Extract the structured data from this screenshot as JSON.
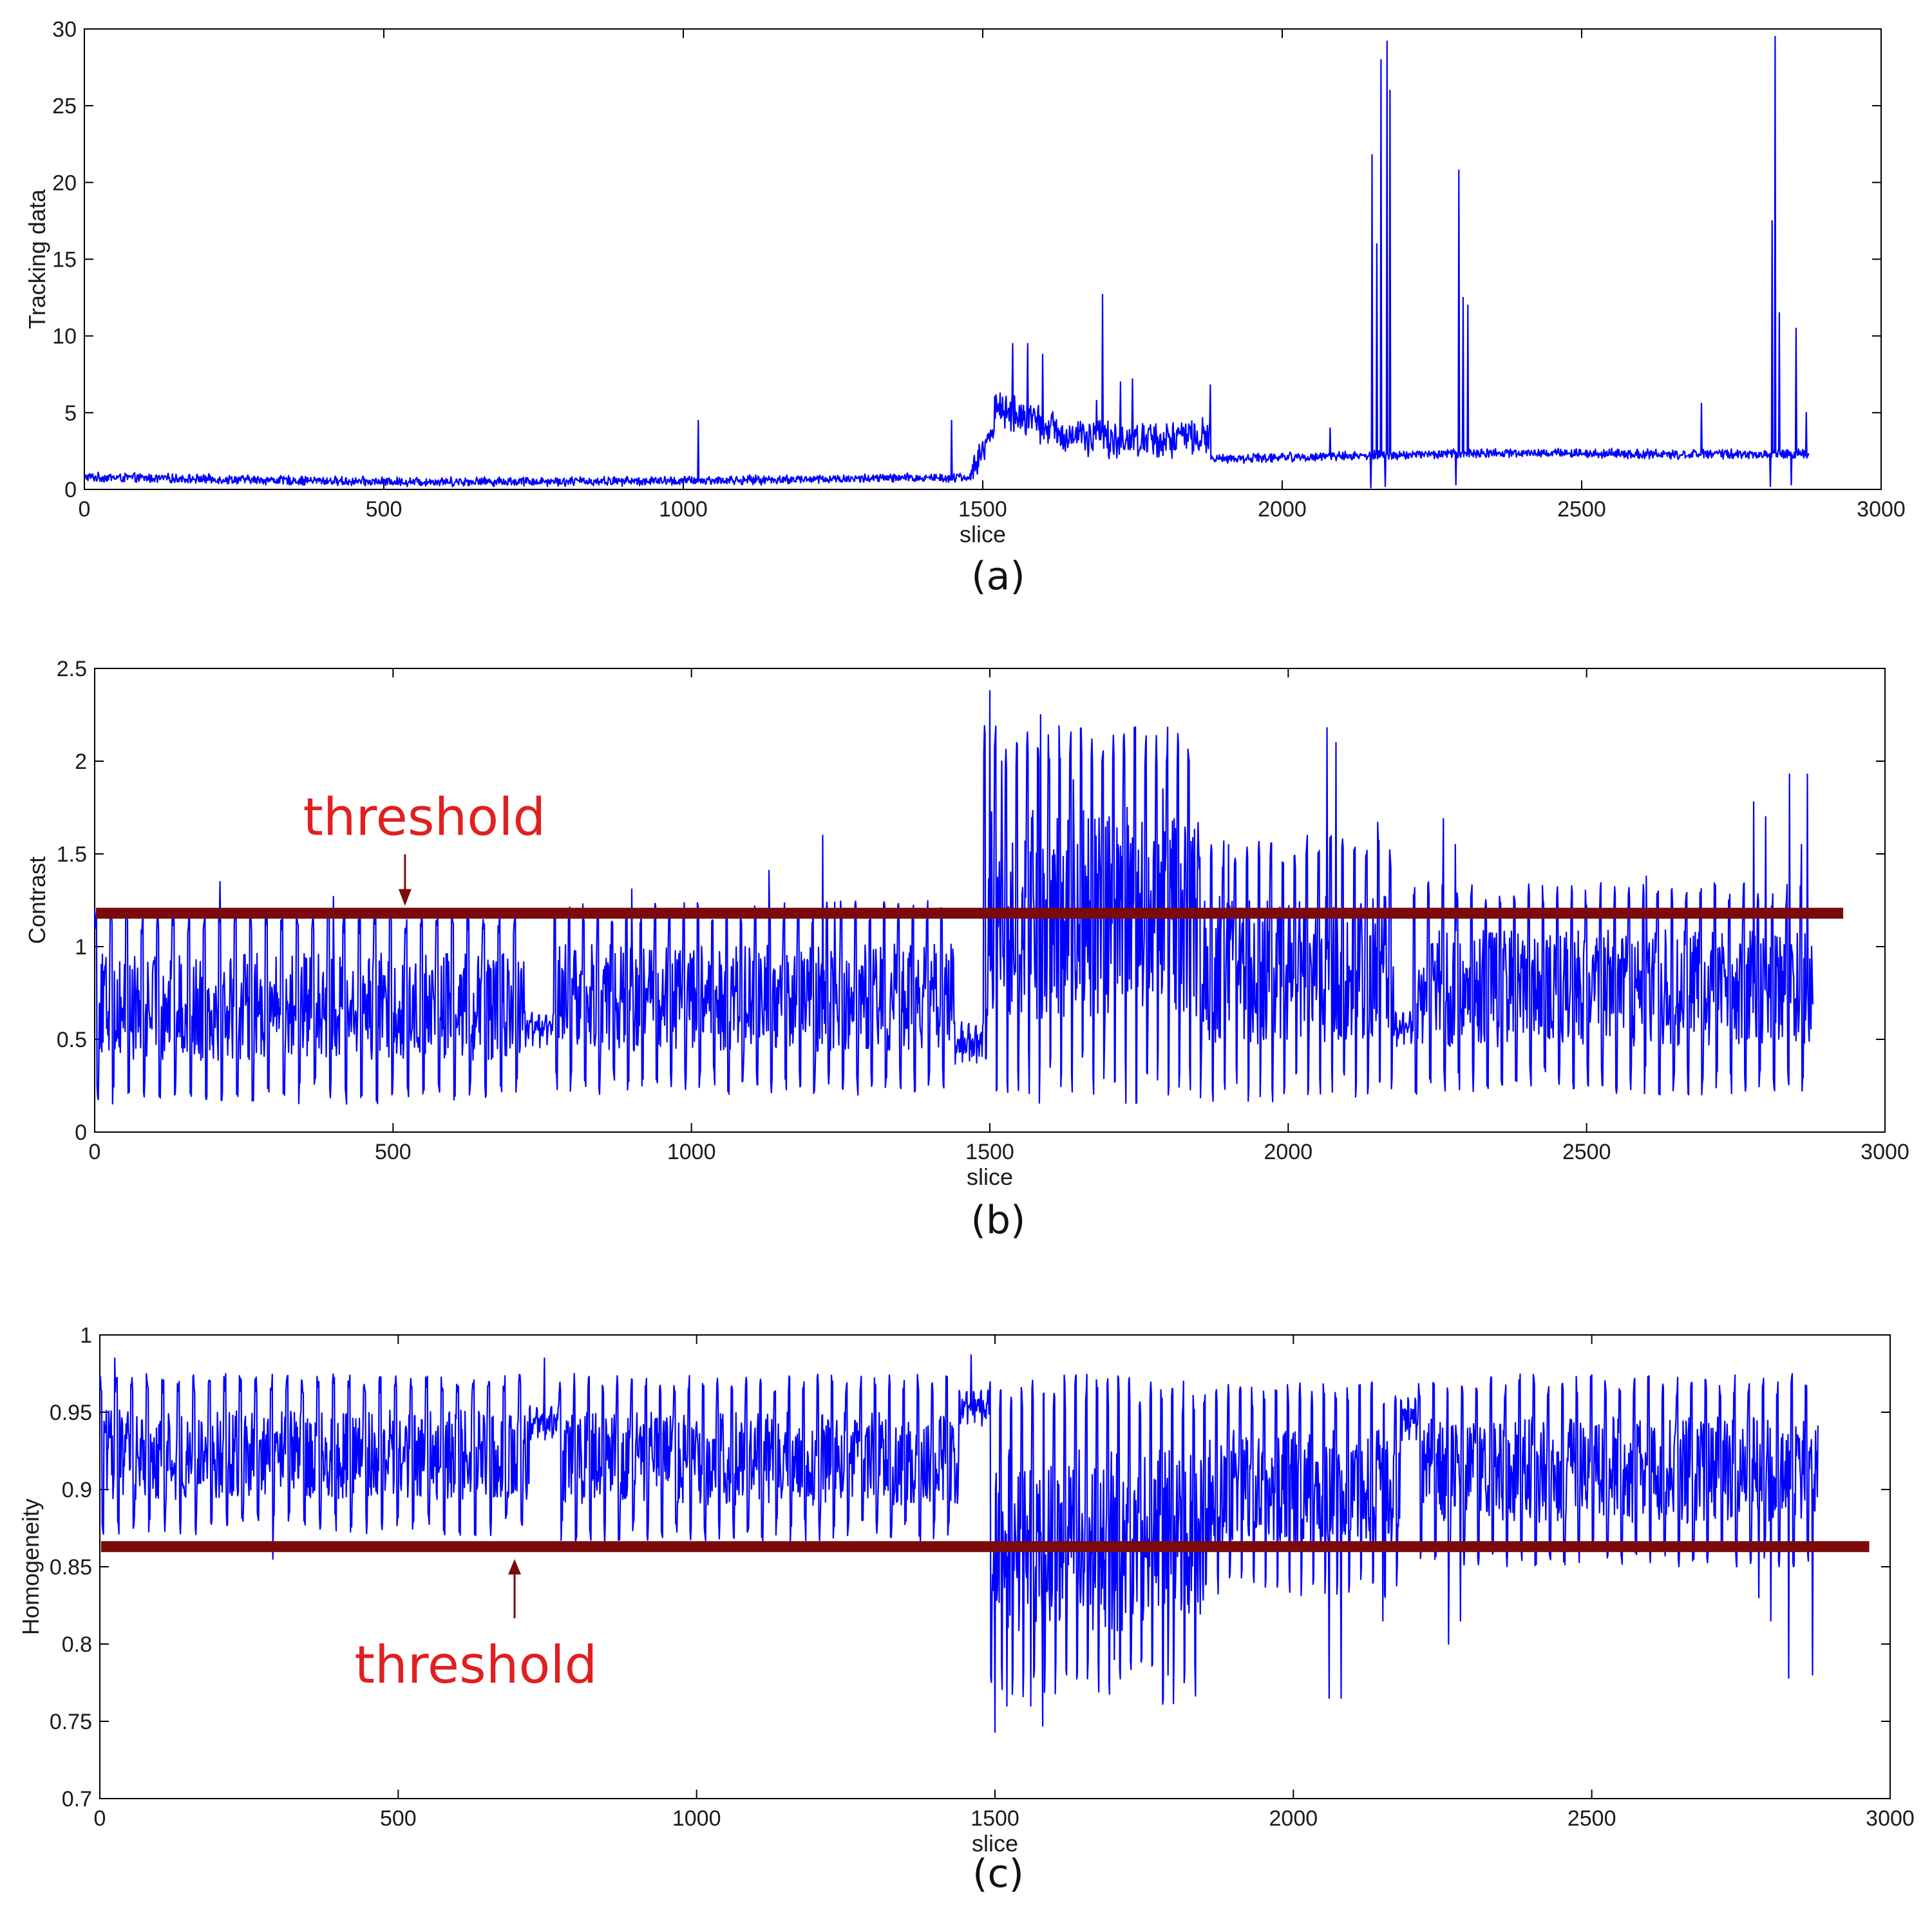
{
  "figure": {
    "panels": [
      "(a)",
      "(b)",
      "(c)"
    ]
  },
  "colors": {
    "series": "#0000ff",
    "threshold_line": "#7b0a0a",
    "annotation_text": "#e02020",
    "annotation_arrow": "#7b0a0a",
    "axes": "#000000"
  },
  "chart_data": [
    {
      "type": "line",
      "panel_label": "(a)",
      "title": "",
      "xlabel": "slice",
      "ylabel": "Tracking data",
      "xlim": [
        0,
        3000
      ],
      "ylim": [
        0,
        30
      ],
      "xticks": [
        0,
        500,
        1000,
        1500,
        2000,
        2500,
        3000
      ],
      "xtick_labels": [
        "0",
        "500",
        "1000",
        "1500",
        "2000",
        "2500",
        "3000"
      ],
      "yticks": [
        0,
        5,
        10,
        15,
        20,
        25,
        30
      ],
      "ytick_labels": [
        "0",
        "5",
        "10",
        "15",
        "20",
        "25",
        "30"
      ],
      "n_points": 2880,
      "segments": [
        {
          "x": [
            0,
            1480
          ],
          "base": [
            0.8,
            0.5,
            0.55,
            0.8
          ],
          "noise": 0.35
        },
        {
          "x": [
            1480,
            1520
          ],
          "base": [
            1.0,
            4.0
          ],
          "noise": 1.0
        },
        {
          "x": [
            1520,
            1880
          ],
          "base": [
            5.5,
            3.5,
            3.2,
            3.5
          ],
          "noise": 1.4
        },
        {
          "x": [
            1880,
            2880
          ],
          "base": [
            2.0,
            2.2,
            2.4,
            2.3,
            2.3
          ],
          "noise": 0.35
        }
      ],
      "spikes": [
        {
          "x": 1025,
          "y": 4.5
        },
        {
          "x": 1448,
          "y": 4.5
        },
        {
          "x": 1550,
          "y": 9.5
        },
        {
          "x": 1575,
          "y": 9.5
        },
        {
          "x": 1600,
          "y": 8.8
        },
        {
          "x": 1690,
          "y": 5.8
        },
        {
          "x": 1700,
          "y": 12.7
        },
        {
          "x": 1730,
          "y": 7.0
        },
        {
          "x": 1750,
          "y": 7.2
        },
        {
          "x": 1880,
          "y": 6.8
        },
        {
          "x": 2080,
          "y": 4.0
        },
        {
          "x": 2150,
          "y": 21.8
        },
        {
          "x": 2158,
          "y": 16.0
        },
        {
          "x": 2165,
          "y": 28.0
        },
        {
          "x": 2175,
          "y": 29.2
        },
        {
          "x": 2180,
          "y": 26.0
        },
        {
          "x": 2295,
          "y": 20.8
        },
        {
          "x": 2302,
          "y": 12.5
        },
        {
          "x": 2310,
          "y": 12.0
        },
        {
          "x": 2700,
          "y": 5.6
        },
        {
          "x": 2818,
          "y": 17.5
        },
        {
          "x": 2823,
          "y": 29.5
        },
        {
          "x": 2830,
          "y": 11.5
        },
        {
          "x": 2858,
          "y": 10.5
        },
        {
          "x": 2875,
          "y": 5.0
        }
      ],
      "dips": [
        {
          "x": 2148,
          "y": 0.1
        },
        {
          "x": 2172,
          "y": 0.2
        },
        {
          "x": 2290,
          "y": 0.3
        },
        {
          "x": 2815,
          "y": 0.2
        },
        {
          "x": 2850,
          "y": 0.3
        }
      ]
    },
    {
      "type": "line",
      "panel_label": "(b)",
      "title": "",
      "xlabel": "slice",
      "ylabel": "Contrast",
      "xlim": [
        0,
        3000
      ],
      "ylim": [
        0,
        2.5
      ],
      "xticks": [
        0,
        500,
        1000,
        1500,
        2000,
        2500,
        3000
      ],
      "xtick_labels": [
        "0",
        "500",
        "1000",
        "1500",
        "2000",
        "2500",
        "3000"
      ],
      "yticks": [
        0,
        0.5,
        1,
        1.5,
        2,
        2.5
      ],
      "ytick_labels": [
        "0",
        "0.5",
        "1",
        "1.5",
        "2",
        "2.5"
      ],
      "n_points": 2880,
      "threshold": 1.18,
      "threshold_xrange": [
        0,
        2930
      ],
      "annotation": {
        "text": "threshold",
        "arrow_tip": [
          520,
          1.22
        ],
        "position": "above"
      },
      "segments": [
        {
          "x": [
            0,
            720
          ],
          "low": 0.15,
          "high": 1.2,
          "period": 26
        },
        {
          "x": [
            720,
            770
          ],
          "low": 0.45,
          "high": 0.65,
          "period": 12
        },
        {
          "x": [
            770,
            1440
          ],
          "low": 0.2,
          "high": 1.25,
          "period": 24
        },
        {
          "x": [
            1440,
            1490
          ],
          "low": 0.35,
          "high": 0.6,
          "period": 12
        },
        {
          "x": [
            1490,
            1850
          ],
          "low": 0.15,
          "high": 2.2,
          "period": 18
        },
        {
          "x": [
            1850,
            2180
          ],
          "low": 0.15,
          "high": 1.6,
          "period": 20
        },
        {
          "x": [
            2180,
            2210
          ],
          "low": 0.45,
          "high": 0.65,
          "period": 12
        },
        {
          "x": [
            2210,
            2880
          ],
          "low": 0.2,
          "high": 1.35,
          "period": 24
        }
      ],
      "spikes": [
        {
          "x": 210,
          "y": 1.35
        },
        {
          "x": 400,
          "y": 1.27
        },
        {
          "x": 900,
          "y": 1.31
        },
        {
          "x": 1130,
          "y": 1.41
        },
        {
          "x": 1240,
          "y": 1.24
        },
        {
          "x": 1220,
          "y": 1.6
        },
        {
          "x": 1500,
          "y": 2.38
        },
        {
          "x": 1520,
          "y": 2.0
        },
        {
          "x": 1545,
          "y": 2.1
        },
        {
          "x": 1585,
          "y": 2.25
        },
        {
          "x": 1640,
          "y": 1.9
        },
        {
          "x": 1700,
          "y": 1.7
        },
        {
          "x": 1730,
          "y": 1.75
        },
        {
          "x": 1790,
          "y": 1.85
        },
        {
          "x": 1900,
          "y": 1.55
        },
        {
          "x": 2065,
          "y": 2.18
        },
        {
          "x": 2080,
          "y": 2.1
        },
        {
          "x": 2150,
          "y": 1.67
        },
        {
          "x": 2260,
          "y": 1.69
        },
        {
          "x": 2280,
          "y": 1.55
        },
        {
          "x": 2600,
          "y": 1.38
        },
        {
          "x": 2780,
          "y": 1.78
        },
        {
          "x": 2800,
          "y": 1.7
        },
        {
          "x": 2840,
          "y": 1.93
        },
        {
          "x": 2860,
          "y": 1.55
        },
        {
          "x": 2870,
          "y": 1.93
        }
      ]
    },
    {
      "type": "line",
      "panel_label": "(c)",
      "title": "",
      "xlabel": "slice",
      "ylabel": "Homogeneity",
      "xlim": [
        0,
        3000
      ],
      "ylim": [
        0.7,
        1
      ],
      "xticks": [
        0,
        500,
        1000,
        1500,
        2000,
        2500,
        3000
      ],
      "xtick_labels": [
        "0",
        "500",
        "1000",
        "1500",
        "2000",
        "2500",
        "3000"
      ],
      "yticks": [
        0.7,
        0.75,
        0.8,
        0.85,
        0.9,
        0.95,
        1
      ],
      "ytick_labels": [
        "0.7",
        "0.75",
        "0.8",
        "0.85",
        "0.9",
        "0.95",
        "1"
      ],
      "n_points": 2880,
      "threshold": 0.863,
      "threshold_xrange": [
        0,
        2965
      ],
      "annotation": {
        "text": "threshold",
        "arrow_tip": [
          695,
          0.86
        ],
        "position": "below"
      },
      "segments": [
        {
          "x": [
            0,
            720
          ],
          "low": 0.87,
          "high": 0.975,
          "period": 26
        },
        {
          "x": [
            720,
            770
          ],
          "low": 0.93,
          "high": 0.955,
          "period": 12
        },
        {
          "x": [
            770,
            1440
          ],
          "low": 0.865,
          "high": 0.975,
          "period": 24
        },
        {
          "x": [
            1440,
            1490
          ],
          "low": 0.94,
          "high": 0.965,
          "period": 12
        },
        {
          "x": [
            1490,
            1850
          ],
          "low": 0.76,
          "high": 0.975,
          "period": 18
        },
        {
          "x": [
            1850,
            2180
          ],
          "low": 0.83,
          "high": 0.97,
          "period": 20
        },
        {
          "x": [
            2180,
            2210
          ],
          "low": 0.93,
          "high": 0.96,
          "period": 12
        },
        {
          "x": [
            2210,
            2880
          ],
          "low": 0.85,
          "high": 0.975,
          "period": 24
        }
      ],
      "spikes": [
        {
          "x": 25,
          "y": 0.985
        },
        {
          "x": 745,
          "y": 0.985
        },
        {
          "x": 1460,
          "y": 0.987
        }
      ],
      "dips": [
        {
          "x": 290,
          "y": 0.855
        },
        {
          "x": 1500,
          "y": 0.743
        },
        {
          "x": 1520,
          "y": 0.76
        },
        {
          "x": 1560,
          "y": 0.76
        },
        {
          "x": 1580,
          "y": 0.747
        },
        {
          "x": 1700,
          "y": 0.79
        },
        {
          "x": 1790,
          "y": 0.78
        },
        {
          "x": 2060,
          "y": 0.765
        },
        {
          "x": 2080,
          "y": 0.765
        },
        {
          "x": 2150,
          "y": 0.815
        },
        {
          "x": 2260,
          "y": 0.8
        },
        {
          "x": 2280,
          "y": 0.815
        },
        {
          "x": 2780,
          "y": 0.83
        },
        {
          "x": 2800,
          "y": 0.815
        },
        {
          "x": 2830,
          "y": 0.778
        },
        {
          "x": 2870,
          "y": 0.78
        }
      ]
    }
  ]
}
